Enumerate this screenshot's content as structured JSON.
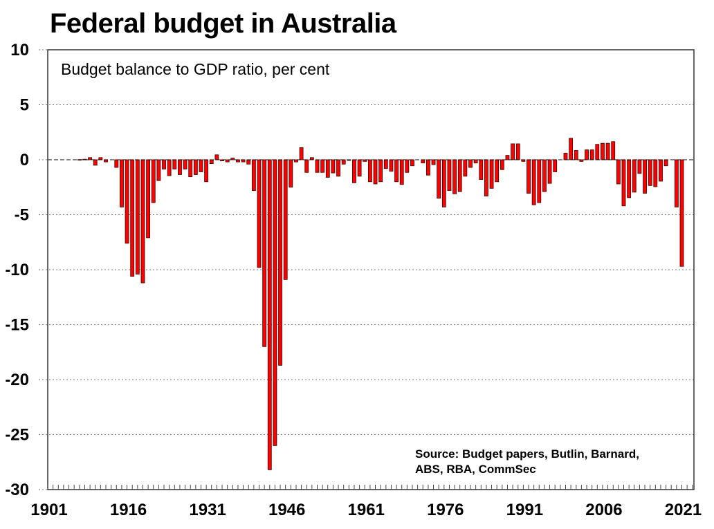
{
  "chart_data": {
    "type": "bar",
    "title": "Federal budget in Australia",
    "subtitle": "Budget balance to GDP ratio, per cent",
    "source_lines": [
      "Source: Budget papers, Butlin, Barnard,",
      "ABS, RBA, CommSec"
    ],
    "xlabel": "",
    "ylabel": "",
    "ylim": [
      -30,
      10
    ],
    "yticks": [
      10,
      5,
      0,
      -5,
      -10,
      -15,
      -20,
      -25,
      -30
    ],
    "xlim": [
      1901,
      2021
    ],
    "xtick_labels": [
      "1901",
      "1916",
      "1931",
      "1946",
      "1961",
      "1976",
      "1991",
      "2006",
      "2021"
    ],
    "grid": "horizontal-dotted",
    "bar_color": "#ff0000",
    "bar_edge_color": "#3a0000",
    "series": [
      {
        "name": "Budget balance to GDP ratio",
        "x": [
          1901,
          1902,
          1903,
          1904,
          1905,
          1906,
          1907,
          1908,
          1909,
          1910,
          1911,
          1912,
          1913,
          1914,
          1915,
          1916,
          1917,
          1918,
          1919,
          1920,
          1921,
          1922,
          1923,
          1924,
          1925,
          1926,
          1927,
          1928,
          1929,
          1930,
          1931,
          1932,
          1933,
          1934,
          1935,
          1936,
          1937,
          1938,
          1939,
          1940,
          1941,
          1942,
          1943,
          1944,
          1945,
          1946,
          1947,
          1948,
          1949,
          1950,
          1951,
          1952,
          1953,
          1954,
          1955,
          1956,
          1957,
          1958,
          1959,
          1960,
          1961,
          1962,
          1963,
          1964,
          1965,
          1966,
          1967,
          1968,
          1969,
          1970,
          1971,
          1972,
          1973,
          1974,
          1975,
          1976,
          1977,
          1978,
          1979,
          1980,
          1981,
          1982,
          1983,
          1984,
          1985,
          1986,
          1987,
          1988,
          1989,
          1990,
          1991,
          1992,
          1993,
          1994,
          1995,
          1996,
          1997,
          1998,
          1999,
          2000,
          2001,
          2002,
          2003,
          2004,
          2005,
          2006,
          2007,
          2008,
          2009,
          2010,
          2011,
          2012,
          2013,
          2014,
          2015,
          2016,
          2017,
          2018,
          2019,
          2020,
          2021
        ],
        "values": [
          0,
          0,
          0,
          0,
          0,
          0,
          0.02,
          0.05,
          0.2,
          -0.5,
          0.2,
          -0.2,
          0,
          -0.7,
          -4.3,
          -7.6,
          -10.6,
          -10.4,
          -11.2,
          -7.1,
          -3.9,
          -1.9,
          -0.85,
          -1.45,
          -0.85,
          -1.35,
          -0.85,
          -1.55,
          -1.35,
          -1.1,
          -2.0,
          -0.35,
          0.45,
          -0.1,
          -0.2,
          0.15,
          -0.2,
          -0.2,
          -0.4,
          -2.8,
          -9.8,
          -17.0,
          -28.2,
          -26.0,
          -18.7,
          -10.9,
          -2.5,
          -0.2,
          1.1,
          -1.15,
          0.2,
          -1.15,
          -1.15,
          -1.6,
          -1.2,
          -1.5,
          -0.4,
          -0.05,
          -2.1,
          -1.5,
          -0.15,
          -2.0,
          -2.2,
          -2.0,
          -0.8,
          -1.05,
          -2.0,
          -2.25,
          -1.15,
          -0.55,
          0,
          -0.3,
          -1.4,
          -0.45,
          -3.5,
          -4.3,
          -2.8,
          -3.1,
          -2.9,
          -1.5,
          -0.7,
          -0.3,
          -1.8,
          -3.3,
          -2.6,
          -2.0,
          -0.9,
          0.4,
          1.45,
          1.45,
          -0.15,
          -3.05,
          -4.1,
          -3.9,
          -2.9,
          -2.15,
          -1.1,
          0,
          0.6,
          1.95,
          0.85,
          -0.15,
          0.9,
          0.9,
          1.4,
          1.5,
          1.5,
          1.65,
          -2.2,
          -4.2,
          -3.45,
          -2.95,
          -1.25,
          -3.05,
          -2.35,
          -2.45,
          -1.95,
          -0.55,
          0,
          -4.3,
          -9.7
        ]
      }
    ]
  }
}
